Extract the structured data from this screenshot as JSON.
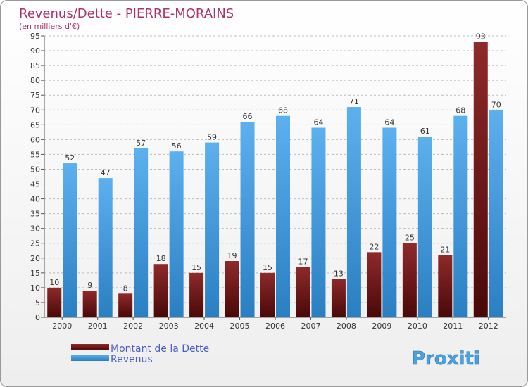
{
  "chart_data": {
    "type": "bar",
    "title": "Revenus/Dette - PIERRE-MORAINS",
    "subtitle": "(en milliers d'€)",
    "categories": [
      "2000",
      "2001",
      "2002",
      "2003",
      "2004",
      "2005",
      "2006",
      "2007",
      "2008",
      "2009",
      "2010",
      "2011",
      "2012"
    ],
    "series": [
      {
        "name": "Montant de la Dette",
        "color": "#7a1c1c",
        "values": [
          10,
          9,
          8,
          18,
          15,
          19,
          15,
          17,
          13,
          22,
          25,
          21,
          93
        ]
      },
      {
        "name": "Revenus",
        "color": "#4fa3e3",
        "values": [
          52,
          47,
          57,
          56,
          59,
          66,
          68,
          64,
          71,
          64,
          61,
          68,
          70
        ]
      }
    ],
    "ylim": [
      0,
      95
    ],
    "ytick_step": 5,
    "yticks": [
      "0",
      "5",
      "10",
      "15",
      "20",
      "25",
      "30",
      "35",
      "40",
      "45",
      "50",
      "55",
      "60",
      "65",
      "70",
      "75",
      "80",
      "85",
      "90",
      "95"
    ],
    "grid": true,
    "legend": "bottom-left"
  },
  "brand": {
    "text": "Proxiti"
  },
  "colors": {
    "title": "#b0306a",
    "legend_text": "#4b5ec8",
    "grid": "#bcbcbc",
    "label": "#333333"
  }
}
